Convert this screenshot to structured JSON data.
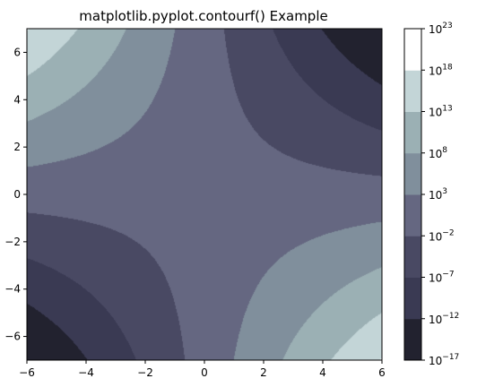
{
  "chart_data": {
    "type": "contourf",
    "title": "matplotlib.pyplot.contourf() Example",
    "xlabel": "",
    "ylabel": "",
    "xlim": [
      -6,
      6
    ],
    "ylim": [
      -7,
      7
    ],
    "x_ticks": [
      -6,
      -4,
      -2,
      0,
      2,
      4,
      6
    ],
    "x_tick_labels": [
      "−6",
      "−4",
      "−2",
      "0",
      "2",
      "4",
      "6"
    ],
    "y_ticks": [
      -6,
      -4,
      -2,
      0,
      2,
      4,
      6
    ],
    "y_tick_labels": [
      "−6",
      "−4",
      "−2",
      "0",
      "2",
      "4",
      "6"
    ],
    "colorbar": {
      "scale": "log",
      "levels_exponent": [
        -17,
        -12,
        -7,
        -2,
        3,
        8,
        13,
        18,
        23
      ],
      "tick_labels": [
        {
          "base": "10",
          "exp": "−17"
        },
        {
          "base": "10",
          "exp": "−12"
        },
        {
          "base": "10",
          "exp": "−7"
        },
        {
          "base": "10",
          "exp": "−2"
        },
        {
          "base": "10",
          "exp": "3"
        },
        {
          "base": "10",
          "exp": "8"
        },
        {
          "base": "10",
          "exp": "13"
        },
        {
          "base": "10",
          "exp": "18"
        },
        {
          "base": "10",
          "exp": "23"
        }
      ],
      "band_colors": [
        "#22222f",
        "#3a3a53",
        "#494963",
        "#656781",
        "#808f9c",
        "#9bb0b4",
        "#c3d5d7",
        "#ffffff"
      ],
      "colormap": "bone"
    },
    "field": {
      "expression": "exp(-x*y)",
      "note": "log10 of z is -x*y*log10(e); contours are hyperbolas x*y = const"
    },
    "grid": false,
    "legend": "none"
  }
}
